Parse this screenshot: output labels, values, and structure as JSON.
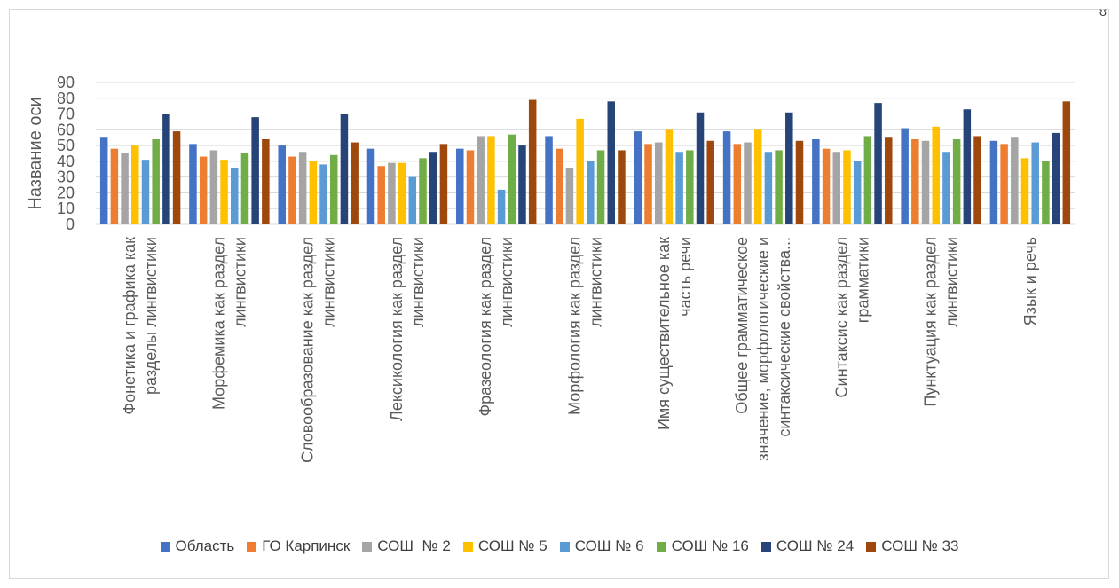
{
  "chart_data": {
    "type": "bar",
    "ylabel": "Название оси",
    "ylim": [
      0,
      90
    ],
    "yticks": [
      0,
      10,
      20,
      30,
      40,
      50,
      60,
      70,
      80,
      90
    ],
    "grid": true,
    "legend_position": "bottom",
    "categories": [
      [
        "Фонетика и графика как",
        "разделы лингвистики"
      ],
      [
        "Морфемика как раздел",
        "лингвистики"
      ],
      [
        "Словообразование как раздел",
        "лингвистики"
      ],
      [
        "Лексикология как раздел",
        "лингвистики"
      ],
      [
        "Фразеология как раздел",
        "лингвистики"
      ],
      [
        "Морфология как раздел",
        "лингвистики"
      ],
      [
        "Имя существительное как",
        "часть речи"
      ],
      [
        "Общее грамматическое",
        "значение, морфологические и",
        "синтаксические свойства..."
      ],
      [
        "Синтаксис как раздел",
        "грамматики"
      ],
      [
        "Пунктуация как раздел",
        "лингвистики"
      ],
      [
        "Язык и речь"
      ]
    ],
    "series": [
      {
        "name": "Область",
        "color": "#4472C4",
        "values": [
          55,
          51,
          50,
          48,
          48,
          56,
          59,
          59,
          54,
          61,
          53
        ]
      },
      {
        "name": "ГО Карпинск",
        "color": "#ED7D31",
        "values": [
          48,
          43,
          43,
          37,
          47,
          48,
          51,
          51,
          48,
          54,
          51
        ]
      },
      {
        "name": "СОШ  № 2",
        "color": "#A5A5A5",
        "values": [
          45,
          47,
          46,
          39,
          56,
          36,
          52,
          52,
          46,
          53,
          55
        ]
      },
      {
        "name": "СОШ № 5",
        "color": "#FFC000",
        "values": [
          50,
          41,
          40,
          39,
          56,
          67,
          60,
          60,
          47,
          62,
          42
        ]
      },
      {
        "name": "СОШ № 6",
        "color": "#5B9BD5",
        "values": [
          41,
          36,
          38,
          30,
          22,
          40,
          46,
          46,
          40,
          46,
          52
        ]
      },
      {
        "name": "СОШ № 16",
        "color": "#70AD47",
        "values": [
          54,
          45,
          44,
          42,
          57,
          47,
          47,
          47,
          56,
          54,
          40
        ]
      },
      {
        "name": "СОШ № 24",
        "color": "#264478",
        "values": [
          70,
          68,
          70,
          46,
          50,
          78,
          71,
          71,
          77,
          73,
          58
        ]
      },
      {
        "name": "СОШ № 33",
        "color": "#9E480E",
        "values": [
          59,
          54,
          52,
          51,
          79,
          47,
          53,
          53,
          55,
          56,
          78
        ]
      }
    ]
  },
  "corner_mark": "ʊ"
}
